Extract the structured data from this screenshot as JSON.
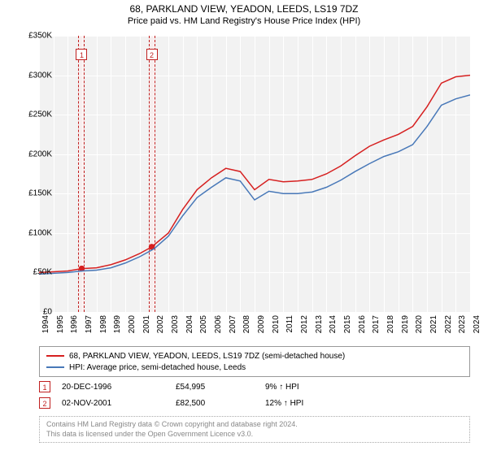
{
  "title_line1": "68, PARKLAND VIEW, YEADON, LEEDS, LS19 7DZ",
  "title_line2": "Price paid vs. HM Land Registry's House Price Index (HPI)",
  "chart": {
    "type": "line",
    "background_color": "#f2f2f2",
    "grid_color": "#ffffff",
    "x_axis": {
      "min_year": 1994,
      "max_year": 2024,
      "ticks": [
        1994,
        1995,
        1996,
        1997,
        1998,
        1999,
        2000,
        2001,
        2002,
        2003,
        2004,
        2005,
        2006,
        2007,
        2008,
        2009,
        2010,
        2011,
        2012,
        2013,
        2014,
        2015,
        2016,
        2017,
        2018,
        2019,
        2020,
        2021,
        2022,
        2023,
        2024
      ]
    },
    "y_axis": {
      "min": 0,
      "max": 350000,
      "tick_step": 50000,
      "tick_labels": [
        "£0",
        "£50K",
        "£100K",
        "£150K",
        "£200K",
        "£250K",
        "£300K",
        "£350K"
      ]
    },
    "series": [
      {
        "name": "price_paid",
        "color": "#d62020",
        "label": "68, PARKLAND VIEW, YEADON, LEEDS, LS19 7DZ (semi-detached house)",
        "points": [
          [
            1994,
            50000
          ],
          [
            1995,
            51000
          ],
          [
            1996,
            52000
          ],
          [
            1996.97,
            54995
          ],
          [
            1998,
            56000
          ],
          [
            1999,
            60000
          ],
          [
            2000,
            66000
          ],
          [
            2001,
            74000
          ],
          [
            2001.84,
            82500
          ],
          [
            2003,
            100000
          ],
          [
            2004,
            130000
          ],
          [
            2005,
            155000
          ],
          [
            2006,
            170000
          ],
          [
            2007,
            182000
          ],
          [
            2008,
            178000
          ],
          [
            2009,
            155000
          ],
          [
            2010,
            168000
          ],
          [
            2011,
            165000
          ],
          [
            2012,
            166000
          ],
          [
            2013,
            168000
          ],
          [
            2014,
            175000
          ],
          [
            2015,
            185000
          ],
          [
            2016,
            198000
          ],
          [
            2017,
            210000
          ],
          [
            2018,
            218000
          ],
          [
            2019,
            225000
          ],
          [
            2020,
            235000
          ],
          [
            2021,
            260000
          ],
          [
            2022,
            290000
          ],
          [
            2023,
            298000
          ],
          [
            2024,
            300000
          ]
        ]
      },
      {
        "name": "hpi",
        "color": "#4878b8",
        "label": "HPI: Average price, semi-detached house, Leeds",
        "points": [
          [
            1994,
            48000
          ],
          [
            1995,
            49000
          ],
          [
            1996,
            50000
          ],
          [
            1997,
            52000
          ],
          [
            1998,
            53000
          ],
          [
            1999,
            56000
          ],
          [
            2000,
            62000
          ],
          [
            2001,
            70000
          ],
          [
            2002,
            80000
          ],
          [
            2003,
            96000
          ],
          [
            2004,
            122000
          ],
          [
            2005,
            145000
          ],
          [
            2006,
            158000
          ],
          [
            2007,
            170000
          ],
          [
            2008,
            166000
          ],
          [
            2009,
            142000
          ],
          [
            2010,
            153000
          ],
          [
            2011,
            150000
          ],
          [
            2012,
            150000
          ],
          [
            2013,
            152000
          ],
          [
            2014,
            158000
          ],
          [
            2015,
            167000
          ],
          [
            2016,
            178000
          ],
          [
            2017,
            188000
          ],
          [
            2018,
            197000
          ],
          [
            2019,
            203000
          ],
          [
            2020,
            212000
          ],
          [
            2021,
            235000
          ],
          [
            2022,
            262000
          ],
          [
            2023,
            270000
          ],
          [
            2024,
            275000
          ]
        ]
      }
    ],
    "events": [
      {
        "num": "1",
        "year": 1996.97,
        "date": "20-DEC-1996",
        "price": "£54,995",
        "pct": "9% ↑ HPI",
        "dot_y": 54995
      },
      {
        "num": "2",
        "year": 2001.84,
        "date": "02-NOV-2001",
        "price": "£82,500",
        "pct": "12% ↑ HPI",
        "dot_y": 82500
      }
    ],
    "event_band_color": "rgba(255,230,230,0.4)",
    "event_border_color": "#c02020",
    "marker_color": "#d62020"
  },
  "footer_line1": "Contains HM Land Registry data © Crown copyright and database right 2024.",
  "footer_line2": "This data is licensed under the Open Government Licence v3.0."
}
